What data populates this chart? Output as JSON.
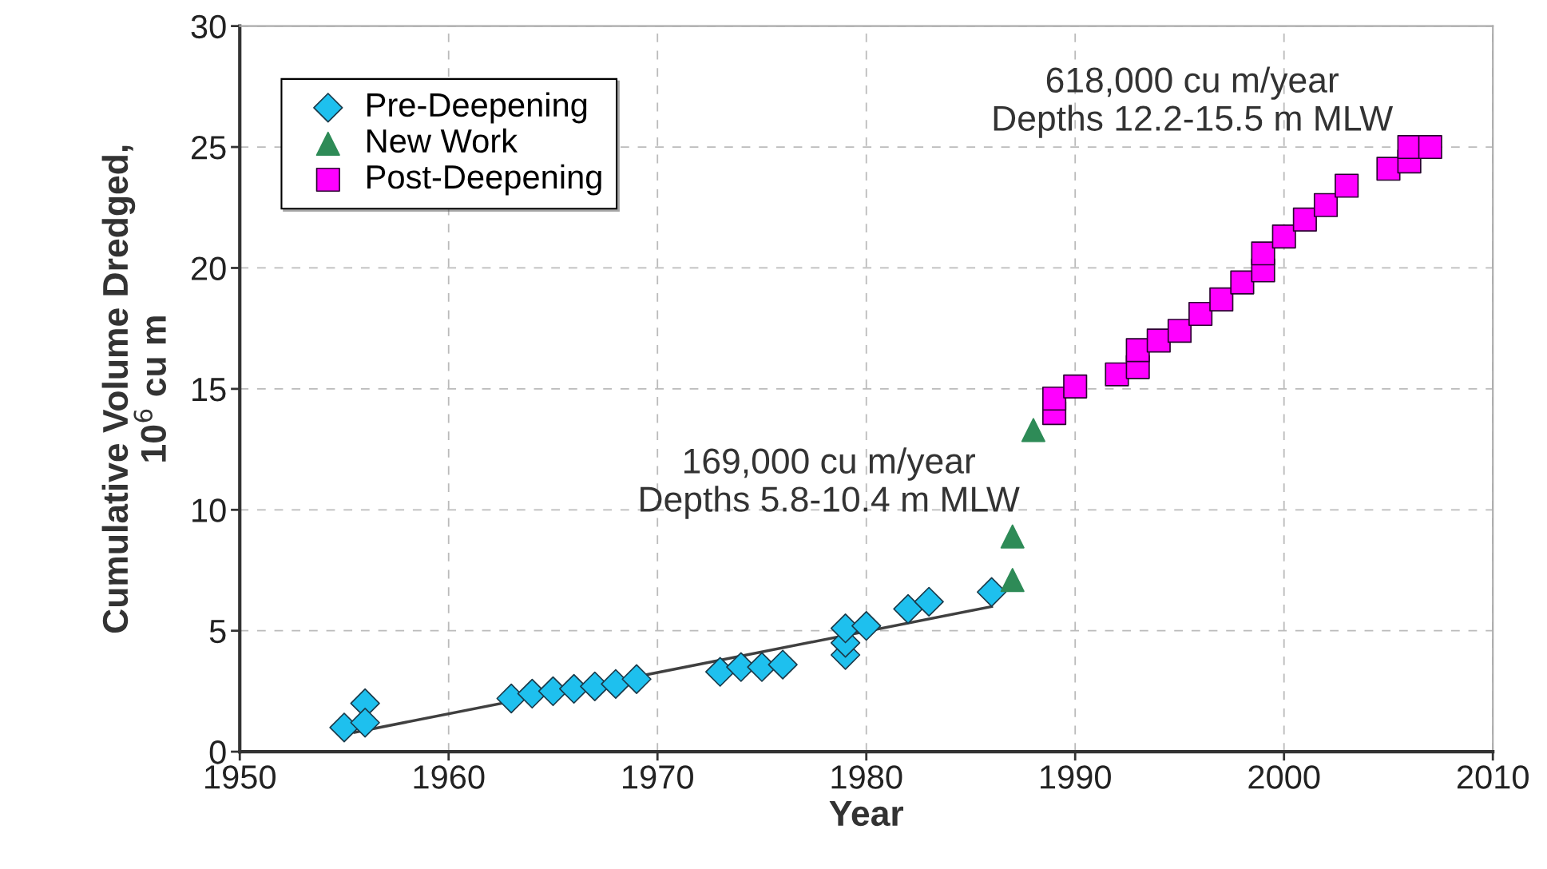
{
  "chart_data": {
    "type": "scatter",
    "xlabel": "Year",
    "ylabel": "Cumulative Volume Dredged,\n10$^{6}$ cu m",
    "xlim": [
      1950,
      2010
    ],
    "xticks": [
      1950,
      1960,
      1970,
      1980,
      1990,
      2000,
      2010
    ],
    "ylim": [
      0,
      30
    ],
    "yticks": [
      0,
      5,
      10,
      15,
      20,
      25,
      30
    ],
    "grid": true,
    "legend": "top left",
    "annotations": [
      "169,000 cu m/year\nDepths 5.8-10.4 m MLW",
      "618,000 cu m/year\nDepths 12.2-15.5 m MLW"
    ],
    "series": [
      {
        "name": "Pre-Deepening",
        "color": "#1ec0ee",
        "marker": "diamond",
        "x": [
          1955,
          1956,
          1956,
          1963,
          1964,
          1965,
          1966,
          1967,
          1968,
          1969,
          1973,
          1974,
          1975,
          1976,
          1979,
          1979,
          1979,
          1980,
          1982,
          1983,
          1986
        ],
        "values": [
          1.0,
          2.0,
          1.2,
          2.2,
          2.4,
          2.5,
          2.6,
          2.7,
          2.8,
          3.0,
          3.3,
          3.5,
          3.5,
          3.6,
          4.0,
          4.5,
          5.1,
          5.2,
          5.9,
          6.2,
          6.6
        ]
      },
      {
        "name": "New Work",
        "color": "#2e8b57",
        "marker": "triangle",
        "x": [
          1987,
          1987,
          1988
        ],
        "values": [
          7.1,
          8.9,
          13.3
        ]
      },
      {
        "name": "Post-Deepening",
        "color": "#ff00ff",
        "marker": "square",
        "x": [
          1989,
          1989,
          1990,
          1992,
          1993,
          1993,
          1994,
          1995,
          1996,
          1997,
          1998,
          1999,
          1999,
          2000,
          2001,
          2002,
          2003,
          2005,
          2006,
          2006,
          2007
        ],
        "values": [
          14.0,
          14.6,
          15.1,
          15.6,
          15.9,
          16.6,
          17.0,
          17.4,
          18.1,
          18.7,
          19.4,
          19.9,
          20.6,
          21.3,
          22.0,
          22.6,
          23.4,
          24.1,
          24.4,
          25.0,
          25.0
        ]
      },
      {
        "type": "line",
        "color": "#404040",
        "marker": "none",
        "line_style": "solid",
        "x": [
          1955.5,
          1986
        ],
        "values": [
          0.8,
          6.0
        ]
      }
    ]
  }
}
